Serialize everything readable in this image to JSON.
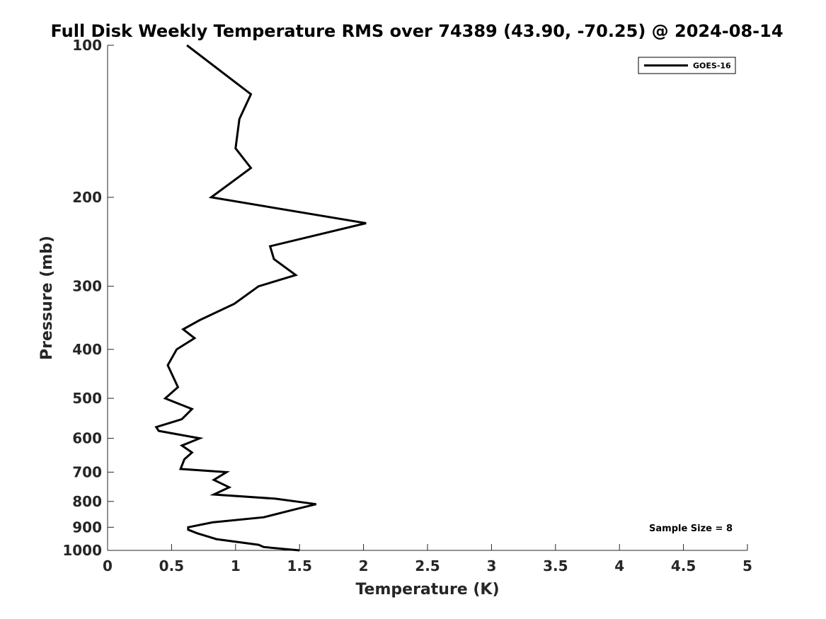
{
  "chart_data": {
    "type": "line",
    "title": "Full Disk Weekly Temperature RMS over 74389 (43.90, -70.25) @ 2024-08-14",
    "xlabel": "Temperature (K)",
    "ylabel": "Pressure (mb)",
    "xlim": [
      0,
      5
    ],
    "ylim": [
      1000,
      100
    ],
    "y_scale": "log",
    "x_ticks": [
      "0",
      "0.5",
      "1",
      "1.5",
      "2",
      "2.5",
      "3",
      "3.5",
      "4",
      "4.5",
      "5"
    ],
    "y_ticks": [
      "100",
      "200",
      "300",
      "400",
      "500",
      "600",
      "700",
      "800",
      "900",
      "1000"
    ],
    "grid": false,
    "legend_position": "top-right",
    "annotation": "Sample Size = 8",
    "series": [
      {
        "name": "GOES-16",
        "color": "#000000",
        "points": [
          [
            0.62,
            100
          ],
          [
            1.12,
            125
          ],
          [
            1.03,
            140
          ],
          [
            1.0,
            160
          ],
          [
            1.12,
            175
          ],
          [
            0.81,
            200
          ],
          [
            2.02,
            225
          ],
          [
            1.27,
            250
          ],
          [
            1.3,
            265
          ],
          [
            1.47,
            285
          ],
          [
            1.18,
            300
          ],
          [
            0.99,
            325
          ],
          [
            0.72,
            350
          ],
          [
            0.59,
            365
          ],
          [
            0.68,
            380
          ],
          [
            0.54,
            400
          ],
          [
            0.47,
            430
          ],
          [
            0.55,
            475
          ],
          [
            0.45,
            500
          ],
          [
            0.66,
            525
          ],
          [
            0.58,
            550
          ],
          [
            0.38,
            570
          ],
          [
            0.4,
            580
          ],
          [
            0.72,
            600
          ],
          [
            0.58,
            620
          ],
          [
            0.66,
            640
          ],
          [
            0.6,
            660
          ],
          [
            0.57,
            690
          ],
          [
            0.93,
            700
          ],
          [
            0.83,
            725
          ],
          [
            0.95,
            750
          ],
          [
            0.83,
            775
          ],
          [
            1.31,
            790
          ],
          [
            1.63,
            810
          ],
          [
            1.46,
            830
          ],
          [
            1.22,
            860
          ],
          [
            0.82,
            880
          ],
          [
            0.63,
            900
          ],
          [
            0.63,
            910
          ],
          [
            0.7,
            925
          ],
          [
            0.85,
            950
          ],
          [
            1.18,
            975
          ],
          [
            1.22,
            985
          ],
          [
            1.5,
            1000
          ]
        ]
      }
    ]
  }
}
